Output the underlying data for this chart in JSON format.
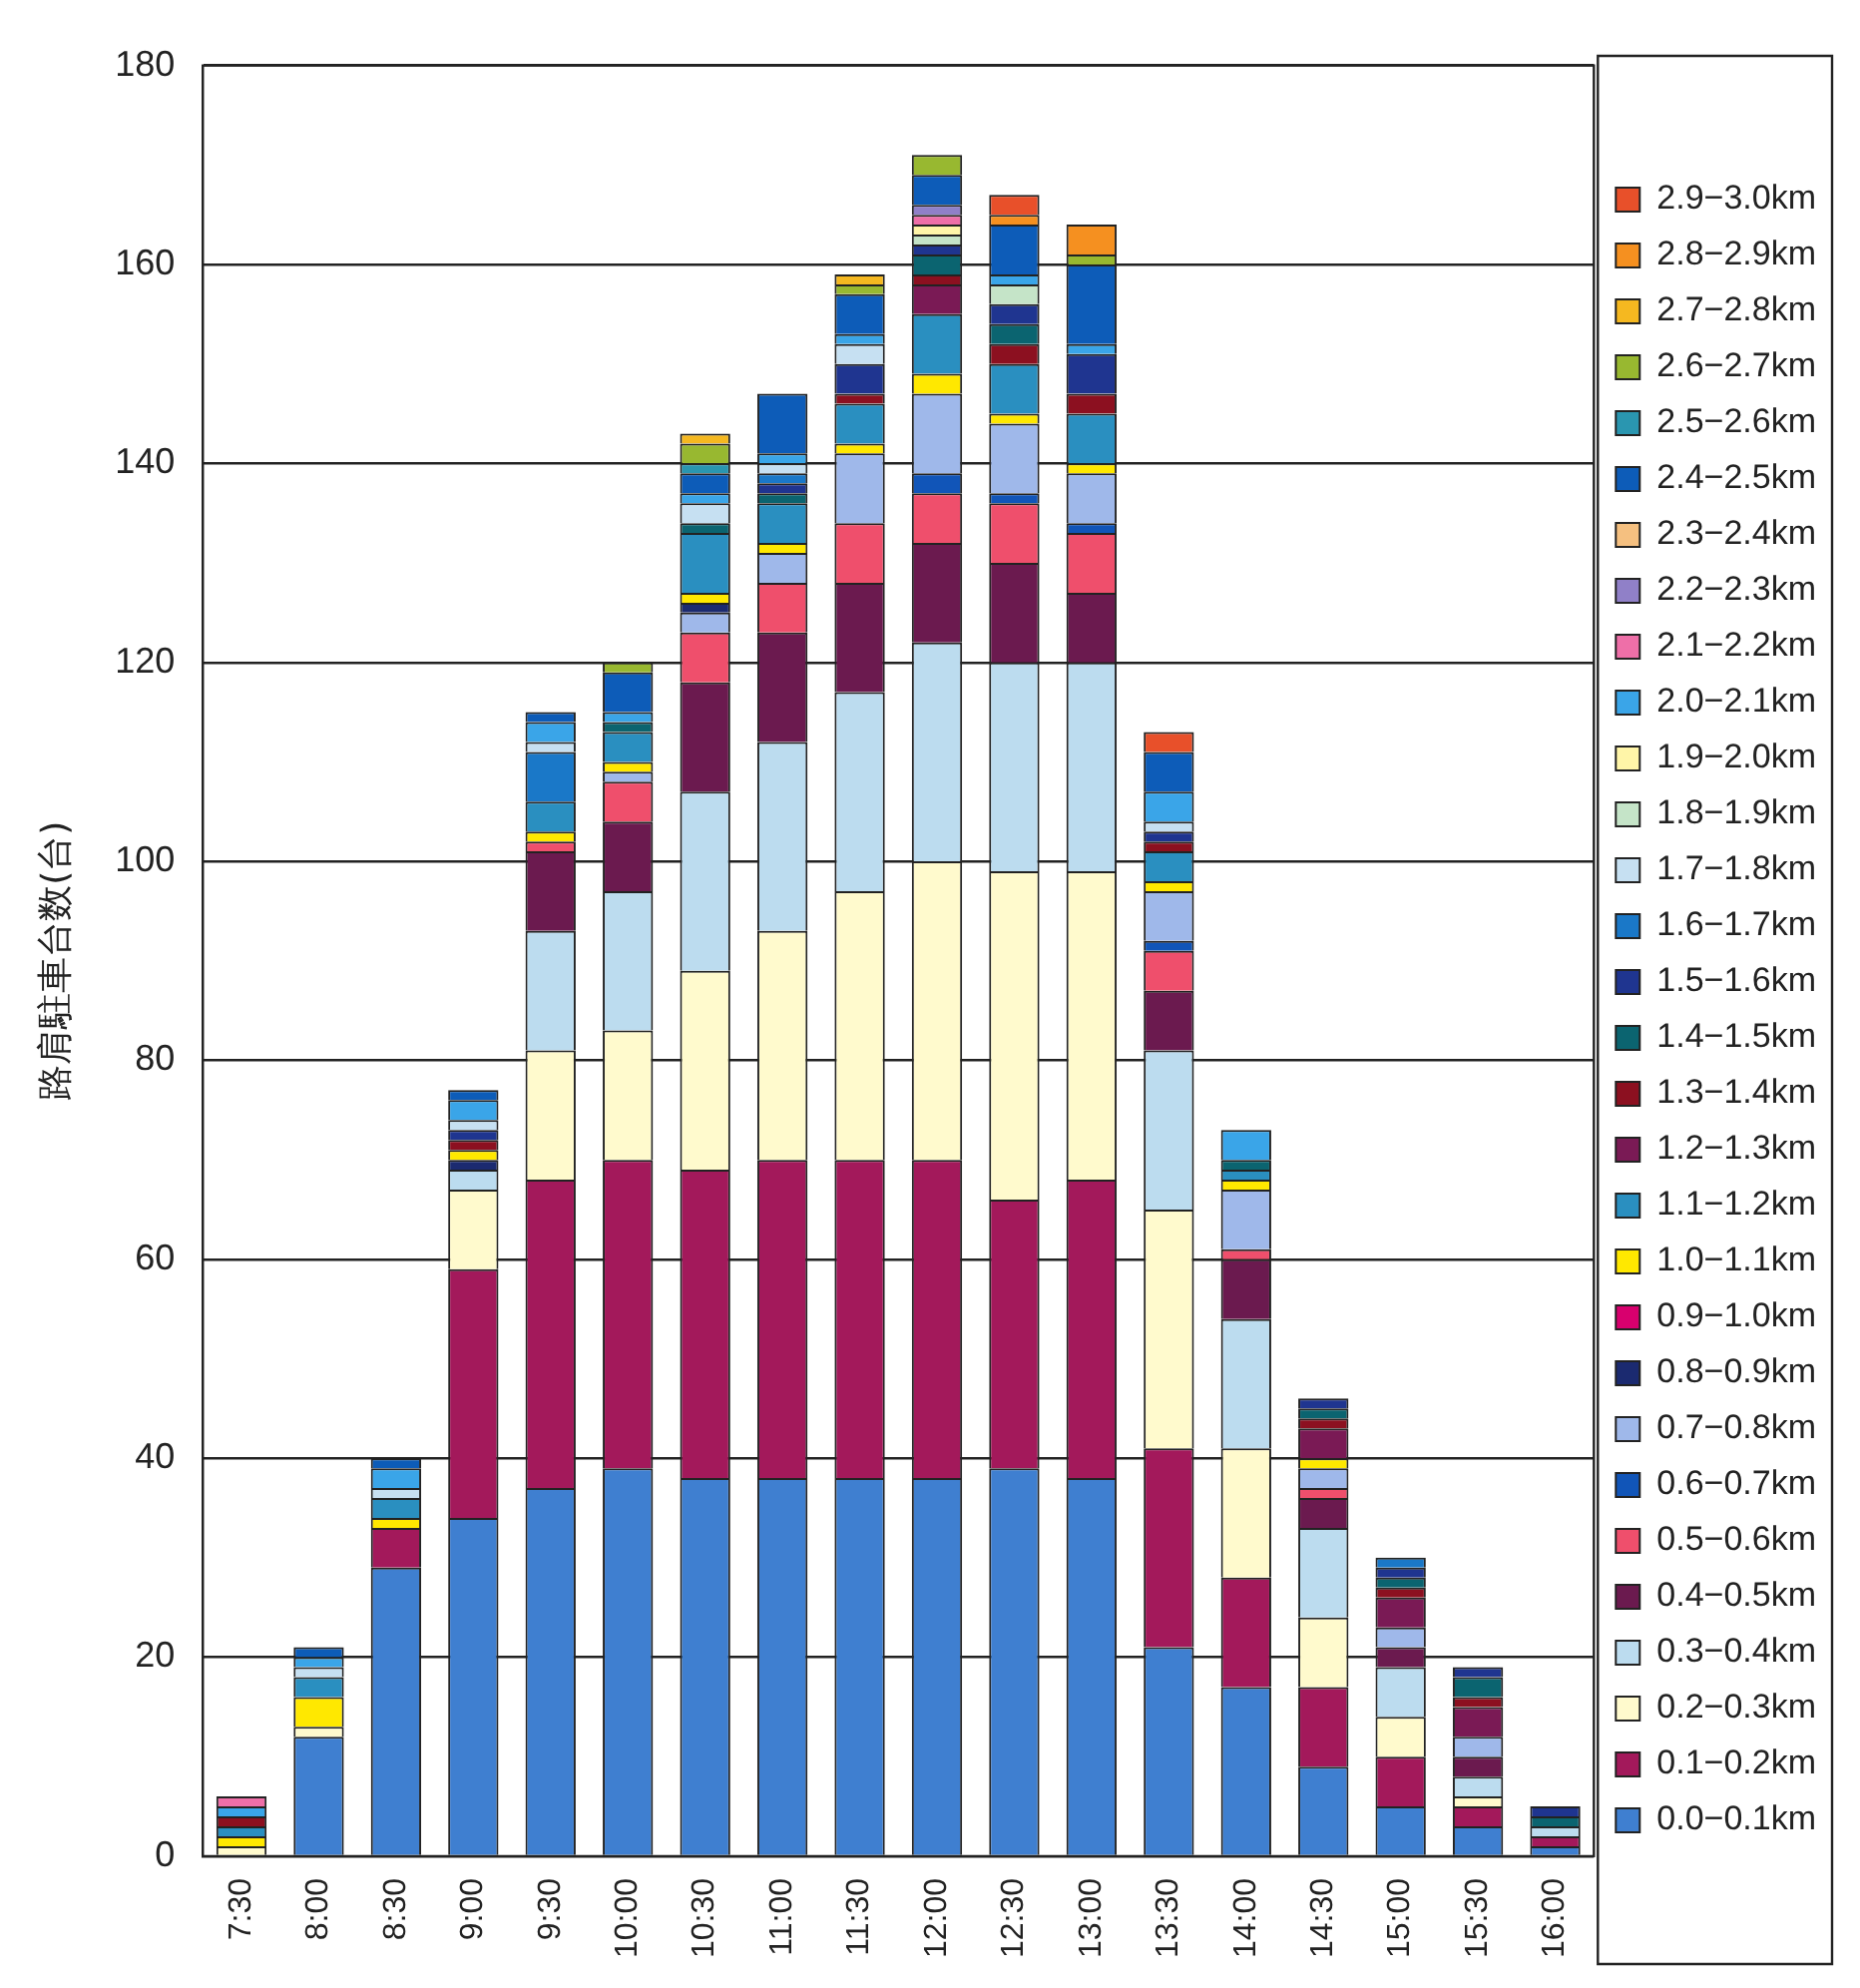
{
  "chart_data": {
    "type": "bar",
    "stacked": true,
    "ylabel": "路肩駐車台数(台)",
    "categories": [
      "7:30",
      "8:00",
      "8:30",
      "9:00",
      "9:30",
      "10:00",
      "10:30",
      "11:00",
      "11:30",
      "12:00",
      "12:30",
      "13:00",
      "13:30",
      "14:00",
      "14:30",
      "15:00",
      "15:30",
      "16:00"
    ],
    "ylim": [
      0,
      180
    ],
    "yticks": [
      0,
      20,
      40,
      60,
      80,
      100,
      120,
      140,
      160,
      180
    ],
    "grid": "y",
    "legend": "right",
    "series": [
      {
        "name": "0.0−0.1km",
        "color": "#3f7fd0",
        "values": [
          null,
          12,
          29,
          34,
          37,
          39,
          38,
          38,
          38,
          38,
          39,
          38,
          21,
          17,
          9,
          5,
          3,
          1
        ]
      },
      {
        "name": "0.1−0.2km",
        "color": "#a3195b",
        "values": [
          null,
          null,
          4,
          25,
          31,
          31,
          31,
          32,
          32,
          32,
          27,
          30,
          20,
          11,
          8,
          5,
          2,
          1
        ]
      },
      {
        "name": "0.2−0.3km",
        "color": "#fffacd",
        "values": [
          1,
          1,
          null,
          8,
          13,
          13,
          20,
          23,
          27,
          30,
          33,
          31,
          24,
          13,
          7,
          4,
          1,
          null
        ]
      },
      {
        "name": "0.3−0.4km",
        "color": "#bcdcef",
        "values": [
          null,
          null,
          null,
          2,
          12,
          14,
          18,
          19,
          20,
          22,
          21,
          21,
          16,
          13,
          9,
          5,
          2,
          1
        ]
      },
      {
        "name": "0.4−0.5km",
        "color": "#6b1a4f",
        "values": [
          null,
          null,
          null,
          null,
          8,
          7,
          11,
          11,
          11,
          10,
          10,
          7,
          6,
          6,
          3,
          2,
          2,
          null
        ]
      },
      {
        "name": "0.5−0.6km",
        "color": "#ef4f6c",
        "values": [
          null,
          null,
          null,
          null,
          1,
          4,
          5,
          5,
          6,
          5,
          6,
          6,
          4,
          1,
          1,
          null,
          null,
          null
        ]
      },
      {
        "name": "0.6−0.7km",
        "color": "#1155b8",
        "values": [
          null,
          null,
          null,
          null,
          null,
          null,
          null,
          null,
          null,
          2,
          1,
          1,
          1,
          null,
          null,
          null,
          null,
          null
        ]
      },
      {
        "name": "0.7−0.8km",
        "color": "#9fb8ea",
        "values": [
          null,
          null,
          null,
          null,
          null,
          1,
          2,
          3,
          7,
          8,
          7,
          5,
          5,
          6,
          2,
          2,
          2,
          null
        ]
      },
      {
        "name": "0.8−0.9km",
        "color": "#1b2a70",
        "values": [
          null,
          null,
          null,
          1,
          null,
          null,
          1,
          null,
          null,
          null,
          null,
          null,
          null,
          null,
          null,
          null,
          null,
          null
        ]
      },
      {
        "name": "0.9−1.0km",
        "color": "#d8006e",
        "values": [
          null,
          null,
          null,
          null,
          null,
          null,
          null,
          null,
          null,
          null,
          null,
          null,
          null,
          null,
          null,
          null,
          null,
          null
        ]
      },
      {
        "name": "1.0−1.1km",
        "color": "#ffe800",
        "values": [
          1,
          3,
          1,
          1,
          1,
          1,
          1,
          1,
          1,
          2,
          1,
          1,
          1,
          1,
          1,
          null,
          null,
          null
        ]
      },
      {
        "name": "1.1−1.2km",
        "color": "#2a8fc0",
        "values": [
          1,
          2,
          2,
          null,
          3,
          3,
          6,
          4,
          4,
          6,
          5,
          5,
          3,
          1,
          null,
          null,
          null,
          null
        ]
      },
      {
        "name": "1.2−1.3km",
        "color": "#7a1a55",
        "values": [
          null,
          null,
          null,
          null,
          null,
          null,
          null,
          null,
          null,
          3,
          null,
          null,
          null,
          null,
          3,
          3,
          3,
          null
        ]
      },
      {
        "name": "1.3−1.4km",
        "color": "#8c1020",
        "values": [
          1,
          null,
          null,
          1,
          null,
          null,
          null,
          null,
          1,
          1,
          2,
          2,
          1,
          null,
          1,
          1,
          1,
          null
        ]
      },
      {
        "name": "1.4−1.5km",
        "color": "#0b6470",
        "values": [
          null,
          null,
          null,
          null,
          null,
          1,
          1,
          1,
          null,
          2,
          2,
          null,
          null,
          1,
          1,
          1,
          2,
          1
        ]
      },
      {
        "name": "1.5−1.6km",
        "color": "#1f3590",
        "values": [
          null,
          null,
          null,
          1,
          null,
          null,
          null,
          1,
          3,
          1,
          2,
          4,
          1,
          null,
          1,
          1,
          1,
          1
        ]
      },
      {
        "name": "1.6−1.7km",
        "color": "#1a78c8",
        "values": [
          null,
          null,
          null,
          null,
          5,
          null,
          null,
          1,
          null,
          null,
          null,
          null,
          null,
          null,
          null,
          1,
          null,
          null
        ]
      },
      {
        "name": "1.7−1.8km",
        "color": "#c6e0f2",
        "values": [
          null,
          1,
          1,
          1,
          1,
          null,
          2,
          1,
          2,
          null,
          null,
          null,
          1,
          null,
          null,
          null,
          null,
          null
        ]
      },
      {
        "name": "1.8−1.9km",
        "color": "#c5e4c8",
        "values": [
          null,
          null,
          null,
          null,
          null,
          null,
          null,
          null,
          null,
          1,
          2,
          null,
          null,
          null,
          null,
          null,
          null,
          null
        ]
      },
      {
        "name": "1.9−2.0km",
        "color": "#fff5a8",
        "values": [
          null,
          null,
          null,
          null,
          null,
          null,
          null,
          null,
          null,
          1,
          null,
          null,
          null,
          null,
          null,
          null,
          null,
          null
        ]
      },
      {
        "name": "2.0−2.1km",
        "color": "#3aa5e8",
        "values": [
          1,
          1,
          2,
          2,
          2,
          1,
          1,
          1,
          1,
          null,
          1,
          1,
          3,
          3,
          null,
          null,
          null,
          null
        ]
      },
      {
        "name": "2.1−2.2km",
        "color": "#ee6fa8",
        "values": [
          1,
          null,
          null,
          null,
          null,
          null,
          null,
          null,
          null,
          1,
          null,
          null,
          null,
          null,
          null,
          null,
          null,
          null
        ]
      },
      {
        "name": "2.2−2.3km",
        "color": "#9080c8",
        "values": [
          null,
          null,
          null,
          null,
          null,
          null,
          null,
          null,
          null,
          1,
          null,
          null,
          null,
          null,
          null,
          null,
          null,
          null
        ]
      },
      {
        "name": "2.3−2.4km",
        "color": "#f5c080",
        "values": [
          null,
          null,
          null,
          null,
          null,
          null,
          null,
          null,
          null,
          null,
          null,
          null,
          null,
          null,
          null,
          null,
          null,
          null
        ]
      },
      {
        "name": "2.4−2.5km",
        "color": "#0d5cb8",
        "values": [
          null,
          1,
          1,
          1,
          1,
          4,
          2,
          6,
          4,
          3,
          5,
          8,
          4,
          null,
          null,
          null,
          null,
          null
        ]
      },
      {
        "name": "2.5−2.6km",
        "color": "#2a96b0",
        "values": [
          null,
          null,
          null,
          null,
          null,
          null,
          1,
          null,
          null,
          null,
          null,
          null,
          null,
          null,
          null,
          null,
          null,
          null
        ]
      },
      {
        "name": "2.6−2.7km",
        "color": "#98b830",
        "values": [
          null,
          null,
          null,
          null,
          null,
          1,
          2,
          null,
          1,
          2,
          null,
          1,
          null,
          null,
          null,
          null,
          null,
          null
        ]
      },
      {
        "name": "2.7−2.8km",
        "color": "#f5b820",
        "values": [
          null,
          null,
          null,
          null,
          null,
          null,
          1,
          null,
          1,
          null,
          null,
          null,
          null,
          null,
          null,
          null,
          null,
          null
        ]
      },
      {
        "name": "2.8−2.9km",
        "color": "#f59020",
        "values": [
          null,
          null,
          null,
          null,
          null,
          null,
          null,
          null,
          null,
          null,
          1,
          3,
          null,
          null,
          null,
          null,
          null,
          null
        ]
      },
      {
        "name": "2.9−3.0km",
        "color": "#e8502a",
        "values": [
          null,
          null,
          null,
          null,
          null,
          null,
          null,
          null,
          null,
          null,
          2,
          null,
          2,
          null,
          null,
          null,
          null,
          null
        ]
      }
    ]
  }
}
